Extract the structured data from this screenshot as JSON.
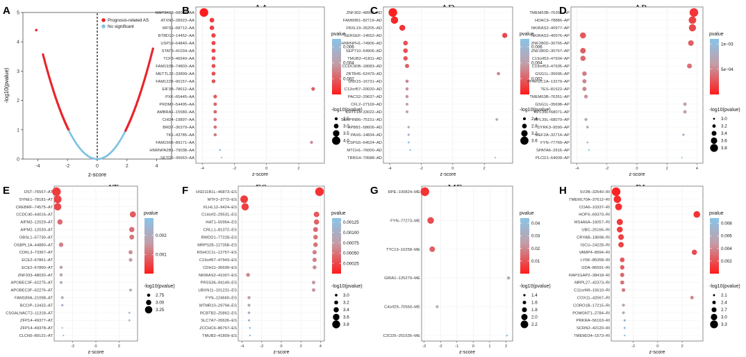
{
  "figure_labels": [
    "A",
    "B",
    "C",
    "D",
    "E",
    "F",
    "G",
    "H"
  ],
  "palette": {
    "high": "#ff1a1a",
    "low": "#89c4e8",
    "volcano_sig": "#e8262c",
    "volcano_ns": "#7fc3e0",
    "zero_line": "#111111"
  },
  "volcano": {
    "label": "A",
    "xlabel": "z-score",
    "ylabel": "-log10(pvalue)",
    "xticks": [
      "-4",
      "-2",
      "0",
      "2",
      "4"
    ],
    "yticks": [
      "0",
      "1",
      "2",
      "3",
      "4",
      "5"
    ],
    "xlim": [
      -5,
      5
    ],
    "ylim": [
      0,
      5
    ],
    "legend": [
      "Prognosis-related AS",
      "No significant"
    ],
    "outlier": {
      "z": -4.1,
      "p": 4.4
    },
    "sig_threshold_z": 1.9
  },
  "chart_data": [
    {
      "label": "B",
      "title": "AA",
      "type": "scatter",
      "xlabel": "z-score",
      "xlim": [
        -4.4,
        3.6
      ],
      "xticks": [
        -4,
        -2,
        0,
        2
      ],
      "cb_title": "pvalue",
      "cb_max": 0.007,
      "cb_ticks": [
        0.006,
        0.004,
        0.002
      ],
      "cb_labels": [
        "0.006",
        "0.004",
        "0.002"
      ],
      "size_title": "-log10(pvalue)",
      "size_labels": [
        "2.5",
        "3.0",
        "3.5",
        "4.0"
      ],
      "size_vals": [
        2.5,
        3.0,
        3.5,
        4.0
      ],
      "size_min": 2.1,
      "size_max": 4.1,
      "points": [
        {
          "name": "MAP3K13–68008–AA",
          "z": -3.9,
          "lp": 4.1
        },
        {
          "name": "ATXN3–28923–AA",
          "z": -3.4,
          "lp": 3.0
        },
        {
          "name": "WFS1–68712–AA",
          "z": -3.4,
          "lp": 2.95
        },
        {
          "name": "BTBD10–14452–AA",
          "z": -3.3,
          "lp": 2.9
        },
        {
          "name": "USP19–64840–AA",
          "z": -3.3,
          "lp": 2.85
        },
        {
          "name": "STAT3–41034–AA",
          "z": -3.3,
          "lp": 2.85
        },
        {
          "name": "TCF3–46540–AA",
          "z": -3.3,
          "lp": 2.8
        },
        {
          "name": "FAM193B–74803–AA",
          "z": -3.3,
          "lp": 2.8
        },
        {
          "name": "METTL22–33899–AA",
          "z": -3.3,
          "lp": 2.8
        },
        {
          "name": "FAM122B–90157–AA",
          "z": -3.3,
          "lp": 2.75
        },
        {
          "name": "EIF3B–78612–AA",
          "z": 2.9,
          "lp": 2.7
        },
        {
          "name": "PXK–65445–AA",
          "z": -3.2,
          "lp": 2.7
        },
        {
          "name": "PRDM2–54495–AA",
          "z": -3.2,
          "lp": 2.65
        },
        {
          "name": "AMBRA1–15580–AA",
          "z": -3.2,
          "lp": 2.65
        },
        {
          "name": "CHD4–19897–AA",
          "z": -3.2,
          "lp": 2.6
        },
        {
          "name": "BRD7–36379–AA",
          "z": -3.2,
          "lp": 2.6
        },
        {
          "name": "TK1–43785–AA",
          "z": -3.2,
          "lp": 2.55
        },
        {
          "name": "FAM156B–89171–AA",
          "z": 2.8,
          "lp": 2.5
        },
        {
          "name": "HNRNPA2B1–79038–AA",
          "z": -2.9,
          "lp": 2.2
        },
        {
          "name": "SETD6–36663–AA",
          "z": -2.8,
          "lp": 2.1
        }
      ]
    },
    {
      "label": "C",
      "title": "AD",
      "type": "scatter",
      "xlabel": "z-score",
      "xlim": [
        -4.4,
        3.8
      ],
      "xticks": [
        -4,
        -2,
        0,
        2
      ],
      "cb_title": "pvalue",
      "cb_max": 0.007,
      "cb_ticks": [
        0.006,
        0.004,
        0.002
      ],
      "cb_labels": [
        "0.006",
        "0.004",
        "0.002"
      ],
      "size_title": "-log10(pvalue)",
      "size_labels": [
        "2.4",
        "2.8",
        "3.2",
        "3.6"
      ],
      "size_vals": [
        2.4,
        2.8,
        3.2,
        3.6
      ],
      "size_min": 2.1,
      "size_max": 3.7,
      "points": [
        {
          "name": "ZNF302–48995–AD",
          "z": -3.8,
          "lp": 3.7
        },
        {
          "name": "FAM60B1–82719–AD",
          "z": -3.7,
          "lp": 3.4
        },
        {
          "name": "FBXL19–35205–AD",
          "z": -3.2,
          "lp": 3.1
        },
        {
          "name": "SERGEF–14552–AD",
          "z": 3.3,
          "lp": 2.9
        },
        {
          "name": "HNRNPH1–74906–AD",
          "z": -3.0,
          "lp": 2.8
        },
        {
          "name": "SEPT10–54906–AD",
          "z": -3.0,
          "lp": 2.8
        },
        {
          "name": "TMUB2–41811–AD",
          "z": -3.0,
          "lp": 2.75
        },
        {
          "name": "CCDC90B–18083–AD",
          "z": -2.9,
          "lp": 2.7
        },
        {
          "name": "ZBTB45–52479–AD",
          "z": 2.9,
          "lp": 2.5
        },
        {
          "name": "SNX15–16731–AD",
          "z": -2.9,
          "lp": 2.5
        },
        {
          "name": "C12orf57–20020–AD",
          "z": -2.9,
          "lp": 2.45
        },
        {
          "name": "PACS2–29637–AD",
          "z": -2.9,
          "lp": 2.45
        },
        {
          "name": "CFL2–27169–AD",
          "z": -2.9,
          "lp": 2.4
        },
        {
          "name": "CHTF18–33022–AD",
          "z": -2.9,
          "lp": 2.4
        },
        {
          "name": "SERPINB6–75151–AD",
          "z": 2.8,
          "lp": 2.35
        },
        {
          "name": "APBB1–58606–AD",
          "z": -2.8,
          "lp": 2.3
        },
        {
          "name": "PAX6–14834–AD",
          "z": -2.8,
          "lp": 2.25
        },
        {
          "name": "CSPG5–64524–AD",
          "z": -2.8,
          "lp": 2.2
        },
        {
          "name": "MTCH1–76000–AD",
          "z": -2.7,
          "lp": 2.15
        },
        {
          "name": "TBRG4–79588–AD",
          "z": 2.7,
          "lp": 2.1
        }
      ]
    },
    {
      "label": "D",
      "title": "AP",
      "type": "scatter",
      "xlabel": "z-score",
      "xlim": [
        -4.4,
        4.4
      ],
      "xticks": [
        -4,
        -2,
        0,
        2,
        4
      ],
      "cb_title": "pvalue",
      "cb_max": 0.0011,
      "cb_ticks": [
        0.001,
        0.0005
      ],
      "cb_labels": [
        "1e−03",
        "5e−04"
      ],
      "size_title": "-log10(pvalue)",
      "size_labels": [
        "3.0",
        "3.2",
        "3.4",
        "3.6",
        "3.8"
      ],
      "size_vals": [
        3.0,
        3.2,
        3.4,
        3.6,
        3.8
      ],
      "size_min": 2.95,
      "size_max": 3.9,
      "points": [
        {
          "name": "TMEM63B–76352–AP",
          "z": 3.8,
          "lp": 3.9
        },
        {
          "name": "HDAC9–78886–AP",
          "z": 3.7,
          "lp": 3.75
        },
        {
          "name": "NKIRAS2–40977–AP",
          "z": 3.7,
          "lp": 3.7
        },
        {
          "name": "NKIRAS2–40976–AP",
          "z": -3.6,
          "lp": 3.55
        },
        {
          "name": "ZNF280D–30765–AP",
          "z": 3.6,
          "lp": 3.5
        },
        {
          "name": "ZNF280D–30767–AP",
          "z": -3.6,
          "lp": 3.5
        },
        {
          "name": "C19orf53–47934–AP",
          "z": -3.6,
          "lp": 3.45
        },
        {
          "name": "C19orf53–47935–AP",
          "z": 3.5,
          "lp": 3.4
        },
        {
          "name": "GSG1L–35696–AP",
          "z": -3.5,
          "lp": 3.35
        },
        {
          "name": "PPAPDC1A–13279–AP",
          "z": -3.5,
          "lp": 3.3
        },
        {
          "name": "TES–81522–AP",
          "z": -3.5,
          "lp": 3.3
        },
        {
          "name": "TMEM63B–76351–AP",
          "z": -3.4,
          "lp": 3.25
        },
        {
          "name": "GSG1L–35698–AP",
          "z": 3.2,
          "lp": 3.2
        },
        {
          "name": "RPL39L–68071–AP",
          "z": 3.2,
          "lp": 3.2
        },
        {
          "name": "RPL39L–68070–AP",
          "z": -3.4,
          "lp": 3.15
        },
        {
          "name": "DYRK3–9590–AP",
          "z": -3.3,
          "lp": 3.1
        },
        {
          "name": "MEF2A–32714–AP",
          "z": 3.1,
          "lp": 3.05
        },
        {
          "name": "FYN–77769–AP",
          "z": -3.3,
          "lp": 3.0
        },
        {
          "name": "SPATA6–2916–AP",
          "z": -3.2,
          "lp": 2.98
        },
        {
          "name": "PLCD1–64009–AP",
          "z": 3.0,
          "lp": 2.95
        }
      ]
    },
    {
      "label": "E",
      "title": "AT",
      "type": "scatter",
      "xlabel": "z-score",
      "xlim": [
        -3.6,
        3.6
      ],
      "xticks": [
        -2,
        0,
        2
      ],
      "cb_title": "pvalue",
      "cb_max": 0.0029,
      "cb_ticks": [
        0.002,
        0.001
      ],
      "cb_labels": [
        "0.002",
        "0.001"
      ],
      "size_title": "-log10(pvalue)",
      "size_labels": [
        "2.75",
        "3.00",
        "3.25"
      ],
      "size_vals": [
        2.75,
        3.0,
        3.25
      ],
      "size_min": 2.55,
      "size_max": 3.4,
      "points": [
        {
          "name": "DST–76557–AT",
          "z": -3.4,
          "lp": 3.4
        },
        {
          "name": "SYNE1–78181–AT",
          "z": -3.3,
          "lp": 3.3
        },
        {
          "name": "CREBRF–74575–AT",
          "z": -3.3,
          "lp": 3.25
        },
        {
          "name": "CCDC40–44016–AT",
          "z": 3.2,
          "lp": 3.1
        },
        {
          "name": "AIFM2–12029–AT",
          "z": -3.1,
          "lp": 3.0
        },
        {
          "name": "AIFM2–12030–AT",
          "z": 3.1,
          "lp": 3.0
        },
        {
          "name": "OBSL1–57730–AT",
          "z": 3.1,
          "lp": 2.95
        },
        {
          "name": "OSBPL1A–44880–AT",
          "z": -3.0,
          "lp": 2.9
        },
        {
          "name": "CDKL3–73367–AT",
          "z": 3.0,
          "lp": 2.85
        },
        {
          "name": "ECE2–67861–AT",
          "z": 3.0,
          "lp": 2.8
        },
        {
          "name": "ECE2–67860–AT",
          "z": -3.0,
          "lp": 2.75
        },
        {
          "name": "ZNF333–48020–AT",
          "z": -3.0,
          "lp": 2.75
        },
        {
          "name": "APOBEC3F–62275–AT",
          "z": -3.0,
          "lp": 2.7
        },
        {
          "name": "APOBEC3F–62276–AT",
          "z": 3.0,
          "lp": 2.7
        },
        {
          "name": "FAM189A–21098–AT",
          "z": -2.9,
          "lp": 2.7
        },
        {
          "name": "BCCIP–13432–AT",
          "z": -2.9,
          "lp": 2.65
        },
        {
          "name": "CSGALNACT2–11318–AT",
          "z": 2.9,
          "lp": 2.6
        },
        {
          "name": "ZFP14–49377–AT",
          "z": 2.9,
          "lp": 2.6
        },
        {
          "name": "ZFP14–49378–AT",
          "z": -2.9,
          "lp": 2.55
        },
        {
          "name": "CLCN5–89131–AT",
          "z": -2.8,
          "lp": 2.55
        }
      ]
    },
    {
      "label": "F",
      "title": "ES",
      "type": "scatter",
      "xlabel": "z-score",
      "xlim": [
        -4.4,
        4.4
      ],
      "xticks": [
        -4,
        -2,
        0,
        2,
        4
      ],
      "cb_title": "pvalue",
      "cb_max": 0.00135,
      "cb_ticks": [
        0.00125,
        0.001,
        0.00075,
        0.0005,
        0.00025
      ],
      "cb_labels": [
        "0.00125",
        "0.00100",
        "0.00075",
        "0.00050",
        "0.00025"
      ],
      "size_title": "-log10(pvalue)",
      "size_labels": [
        "3.0",
        "3.2",
        "3.4",
        "3.6",
        "3.8"
      ],
      "size_vals": [
        3.0,
        3.2,
        3.4,
        3.6,
        3.8
      ],
      "size_min": 2.85,
      "size_max": 3.9,
      "points": [
        {
          "name": "HSD11B1L–46873–ES",
          "z": 3.9,
          "lp": 3.9
        },
        {
          "name": "MTF2–3772–ES",
          "z": -3.8,
          "lp": 3.75
        },
        {
          "name": "KLHL12–9424–ES",
          "z": -3.7,
          "lp": 3.7
        },
        {
          "name": "C14orf2–29531–ES",
          "z": 3.6,
          "lp": 3.45
        },
        {
          "name": "HAT1–55964–ES",
          "z": 3.6,
          "lp": 3.4
        },
        {
          "name": "CRLL1–81372–ES",
          "z": 3.5,
          "lp": 3.35
        },
        {
          "name": "RWDD1–77228–ES",
          "z": 3.5,
          "lp": 3.3
        },
        {
          "name": "MRPS28–127358–ES",
          "z": 3.5,
          "lp": 3.3
        },
        {
          "name": "RSHCC1L–12757–ES",
          "z": 3.4,
          "lp": 3.25
        },
        {
          "name": "C19orf57–47943–ES",
          "z": 3.4,
          "lp": 3.25
        },
        {
          "name": "CDH11–36699–ES",
          "z": 3.4,
          "lp": 3.2
        },
        {
          "name": "NKIRAS2–41007–ES",
          "z": -3.4,
          "lp": 3.2
        },
        {
          "name": "PRSS36–94149–ES",
          "z": 3.3,
          "lp": 3.15
        },
        {
          "name": "UBXN11–101231–ES",
          "z": 3.3,
          "lp": 3.15
        },
        {
          "name": "FYN–124660–ES",
          "z": -3.3,
          "lp": 3.1
        },
        {
          "name": "MTMR10–29794–ES",
          "z": -3.3,
          "lp": 3.05
        },
        {
          "name": "RCBTB2–25862–ES",
          "z": -3.3,
          "lp": 3.0
        },
        {
          "name": "SLC7A7–26626–ES",
          "z": -3.3,
          "lp": 2.95
        },
        {
          "name": "ZCCHC6–86767–ES",
          "z": -3.2,
          "lp": 2.9
        },
        {
          "name": "TMUB2–41809–ES",
          "z": -3.2,
          "lp": 2.88
        }
      ]
    },
    {
      "label": "G",
      "title": "ME",
      "type": "scatter",
      "xlabel": "z-score",
      "xlim": [
        -3.15,
        2.4
      ],
      "xticks": [
        -3,
        -2,
        -1,
        0,
        1,
        2
      ],
      "cb_title": "pvalue",
      "cb_max": 0.044,
      "cb_ticks": [
        0.04,
        0.03,
        0.02,
        0.01
      ],
      "cb_labels": [
        "0.04",
        "0.03",
        "0.02",
        "0.01"
      ],
      "size_title": "-log10(pvalue)",
      "size_labels": [
        "1.4",
        "1.6",
        "1.8",
        "2.0",
        "2.2"
      ],
      "size_vals": [
        1.4,
        1.6,
        1.8,
        2.0,
        2.2
      ],
      "size_min": 1.3,
      "size_max": 2.35,
      "points": [
        {
          "name": "RPE–100824–ME",
          "z": -2.95,
          "lp": 2.35
        },
        {
          "name": "FYN–77273–ME",
          "z": -2.6,
          "lp": 2.05
        },
        {
          "name": "TTC13–10258–ME",
          "z": -2.5,
          "lp": 1.9
        },
        {
          "name": "GRIA1–125279–ME",
          "z": 2.15,
          "lp": 1.55
        },
        {
          "name": "C4orf29–70560–ME",
          "z": -2.2,
          "lp": 1.5
        },
        {
          "name": "C2CD5–251535–ME",
          "z": 2.05,
          "lp": 1.35
        }
      ]
    },
    {
      "label": "H",
      "title": "RI",
      "type": "scatter",
      "xlabel": "z-score",
      "xlim": [
        -3.8,
        3.7
      ],
      "xticks": [
        -2,
        0,
        2
      ],
      "cb_title": "pvalue",
      "cb_max": 0.0088,
      "cb_ticks": [
        0.008,
        0.006,
        0.004,
        0.002
      ],
      "cb_labels": [
        "0.008",
        "0.006",
        "0.004",
        "0.002"
      ],
      "size_title": "-log10(pvalue)",
      "size_labels": [
        "2.1",
        "2.4",
        "2.7",
        "3.0",
        "3.3"
      ],
      "size_vals": [
        2.1,
        2.4,
        2.7,
        3.0,
        3.3
      ],
      "size_min": 2.0,
      "size_max": 3.45,
      "points": [
        {
          "name": "SV2B–32540–RI",
          "z": -3.4,
          "lp": 3.45
        },
        {
          "name": "TMEM170A–37612–RI",
          "z": -3.3,
          "lp": 3.2
        },
        {
          "name": "COA6–10337–RI",
          "z": -3.2,
          "lp": 3.1
        },
        {
          "name": "HOPX–69370–RI",
          "z": 3.2,
          "lp": 3.05
        },
        {
          "name": "MS4A6A–16057–RI",
          "z": -3.1,
          "lp": 2.95
        },
        {
          "name": "UBC–25166–RI",
          "z": -3.1,
          "lp": 2.9
        },
        {
          "name": "CRYAB–18698–RI",
          "z": -3.0,
          "lp": 2.85
        },
        {
          "name": "ISCU–24228–RI",
          "z": -3.0,
          "lp": 2.8
        },
        {
          "name": "VAMP4–8994–RI",
          "z": 3.0,
          "lp": 2.75
        },
        {
          "name": "LY6K–85358–RI",
          "z": -2.9,
          "lp": 2.65
        },
        {
          "name": "GDA–86591–RI",
          "z": -2.9,
          "lp": 2.6
        },
        {
          "name": "RAP1GAP2–38418–RI",
          "z": -2.9,
          "lp": 2.55
        },
        {
          "name": "MRPL27–42373–RI",
          "z": -2.9,
          "lp": 2.5
        },
        {
          "name": "C11orf49–15610–RI",
          "z": -2.8,
          "lp": 2.45
        },
        {
          "name": "COX11–42567–RI",
          "z": 2.8,
          "lp": 2.4
        },
        {
          "name": "CORO1B–17215–RI",
          "z": -2.8,
          "lp": 2.3
        },
        {
          "name": "POMGNT1–2784–RI",
          "z": -2.8,
          "lp": 2.25
        },
        {
          "name": "PRKRA–56163–RI",
          "z": -2.7,
          "lp": 2.15
        },
        {
          "name": "SCRN2–42120–RI",
          "z": -2.7,
          "lp": 2.1
        },
        {
          "name": "TMEM234–1573–RI",
          "z": -2.7,
          "lp": 2.05
        }
      ]
    }
  ]
}
